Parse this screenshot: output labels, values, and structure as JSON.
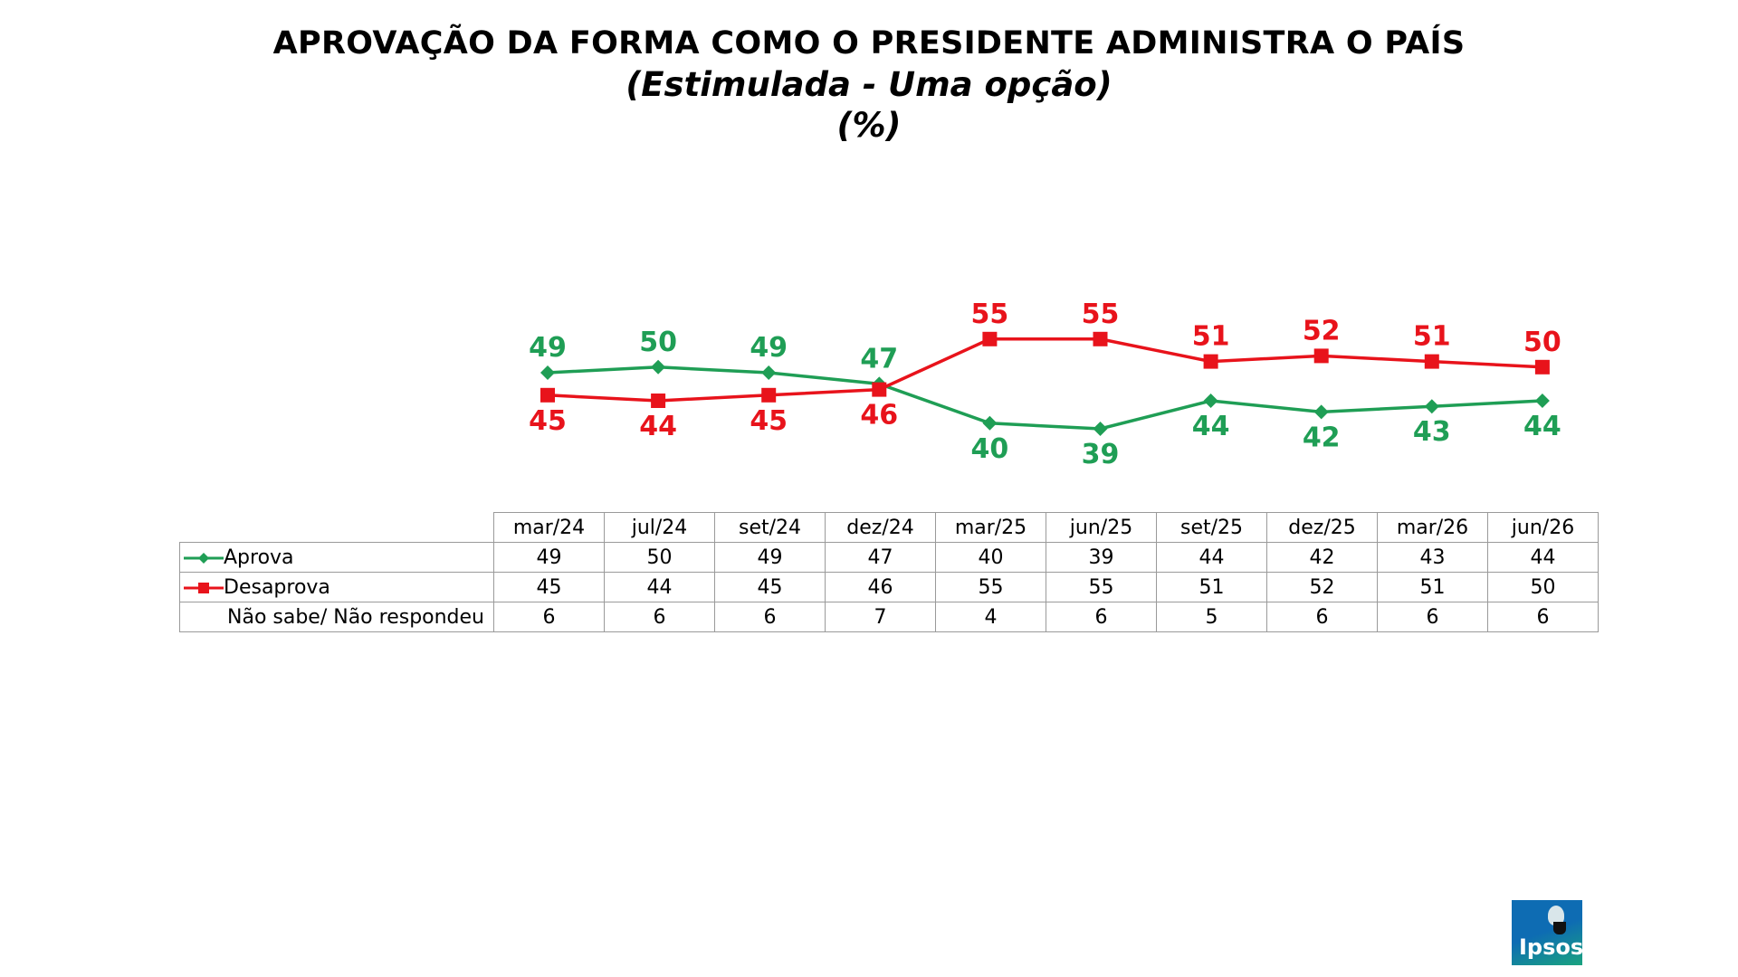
{
  "chart_data": {
    "type": "line",
    "title_line1": "APROVAÇÃO DA FORMA COMO O PRESIDENTE ADMINISTRA O PAÍS",
    "subtitle": "(Estimulada - Uma opção)",
    "unit": "(%)",
    "categories": [
      "mar/24",
      "jul/24",
      "set/24",
      "dez/24",
      "mar/25",
      "jun/25",
      "set/25",
      "dez/25",
      "mar/26",
      "jun/26"
    ],
    "series": [
      {
        "name": "Aprova",
        "values": [
          49,
          50,
          49,
          47,
          40,
          39,
          44,
          42,
          43,
          44
        ],
        "color": "#1f9e55",
        "marker": "diamond"
      },
      {
        "name": "Desaprova",
        "values": [
          45,
          44,
          45,
          46,
          55,
          55,
          51,
          52,
          51,
          50
        ],
        "color": "#e8131b",
        "marker": "square"
      }
    ],
    "table_rows": [
      {
        "label": "Aprova",
        "values": [
          "49",
          "50",
          "49",
          "47",
          "40",
          "39",
          "44",
          "42",
          "43",
          "44"
        ]
      },
      {
        "label": "Desaprova",
        "values": [
          "45",
          "44",
          "45",
          "46",
          "55",
          "55",
          "51",
          "52",
          "51",
          "50"
        ]
      },
      {
        "label": "Não sabe/ Não respondeu",
        "values": [
          "6",
          "6",
          "6",
          "7",
          "4",
          "6",
          "5",
          "6",
          "6",
          "6"
        ]
      }
    ],
    "legend": "table"
  },
  "logo": {
    "text": "Ipsos"
  }
}
